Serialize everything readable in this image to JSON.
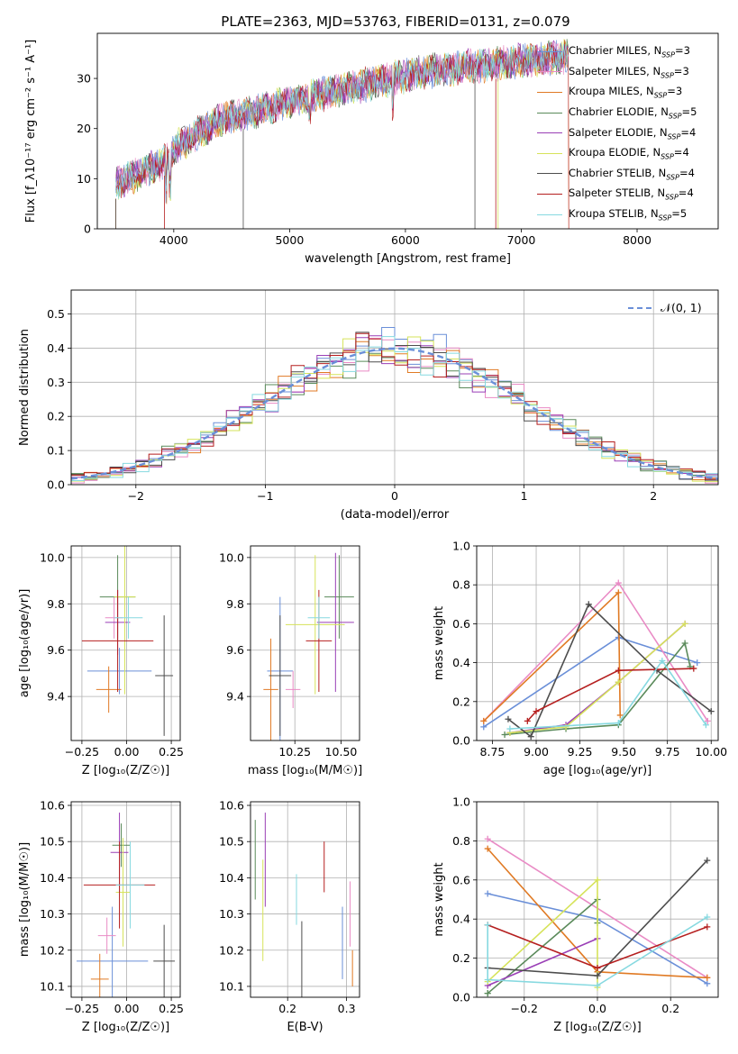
{
  "figure": {
    "title": "PLATE=2363, MJD=53763, FIBERID=0131, z=0.079"
  },
  "colors": {
    "series": [
      "#6a8fd8",
      "#e98bc5",
      "#e07a24",
      "#5a8a5a",
      "#9a3fb6",
      "#d6e35a",
      "#4d4d4d",
      "#b51f1f",
      "#86d9e0"
    ],
    "gaussian": "#6a8fd8",
    "grid": "#b0b0b0"
  },
  "legend": {
    "models": [
      {
        "name": "Chabrier MILES",
        "n": "3"
      },
      {
        "name": "Salpeter MILES",
        "n": "3"
      },
      {
        "name": "Kroupa MILES",
        "n": "3"
      },
      {
        "name": "Chabrier ELODIE",
        "n": "5"
      },
      {
        "name": "Salpeter ELODIE",
        "n": "4"
      },
      {
        "name": "Kroupa ELODIE",
        "n": "4"
      },
      {
        "name": "Chabrier STELIB",
        "n": "4"
      },
      {
        "name": "Salpeter STELIB",
        "n": "4"
      },
      {
        "name": "Kroupa STELIB",
        "n": "5"
      }
    ],
    "n_prefix": "N",
    "n_sub": "SSP",
    "gaussian_label": "𝒩(0, 1)"
  },
  "chart_data": [
    {
      "id": "spectrum",
      "type": "line",
      "xlabel": "wavelength [Angstrom, rest frame]",
      "ylabel": "Flux [f_λ10⁻¹⁷ erg cm⁻² s⁻¹ A⁻¹]",
      "xlim": [
        3340,
        8700
      ],
      "ylim": [
        0,
        39
      ],
      "xticks": [
        4000,
        5000,
        6000,
        7000,
        8000
      ],
      "yticks": [
        0,
        10,
        20,
        30
      ],
      "grid": false,
      "legend_position": "upper-right",
      "continuum": {
        "x": [
          3500,
          3700,
          3900,
          4000,
          4200,
          4400,
          4600,
          4800,
          5000,
          5200,
          5400,
          5600,
          5800,
          6000,
          6200,
          6400,
          6600,
          6800,
          7000,
          7200,
          7400
        ],
        "y": [
          9,
          11,
          13,
          16,
          19,
          21.5,
          23,
          24,
          25.5,
          26.5,
          27.5,
          28.5,
          29.5,
          30.5,
          31.5,
          32,
          32.5,
          33,
          33.5,
          34,
          34.5
        ]
      },
      "x_range": [
        3500,
        7410
      ]
    },
    {
      "id": "residuals",
      "type": "bar",
      "xlabel": "(data-model)/error",
      "ylabel": "Normed distribution",
      "xlim": [
        -2.5,
        2.5
      ],
      "ylim": [
        0,
        0.57
      ],
      "xticks": [
        -2,
        -1,
        0,
        1,
        2
      ],
      "yticks": [
        0.0,
        0.1,
        0.2,
        0.3,
        0.4,
        0.5
      ],
      "grid": true,
      "bin_width": 0.1,
      "legend_position": "upper-right"
    },
    {
      "id": "age-vs-Z",
      "type": "scatter",
      "xlabel": "Z [log₁₀(Z/Z☉)]",
      "ylabel": "age  [log₁₀(age/yr)]",
      "xlim": [
        -0.31,
        0.3
      ],
      "ylim": [
        9.21,
        10.05
      ],
      "xticks": [
        -0.25,
        0.0,
        0.25
      ],
      "yticks": [
        9.4,
        9.6,
        9.8,
        10.0
      ],
      "grid": true,
      "points": [
        {
          "series": 0,
          "x": -0.04,
          "y": 9.51,
          "xerr": 0.18,
          "yerr": 0.1
        },
        {
          "series": 1,
          "x": -0.07,
          "y": 9.74,
          "xerr": 0.05,
          "yerr": 0.09
        },
        {
          "series": 2,
          "x": -0.1,
          "y": 9.43,
          "xerr": 0.07,
          "yerr": 0.1
        },
        {
          "series": 3,
          "x": -0.05,
          "y": 9.83,
          "xerr": 0.1,
          "yerr": 0.18
        },
        {
          "series": 4,
          "x": -0.05,
          "y": 9.72,
          "xerr": 0.07,
          "yerr": 0.14
        },
        {
          "series": 5,
          "x": -0.01,
          "y": 9.83,
          "xerr": 0.06,
          "yerr": 0.42
        },
        {
          "series": 6,
          "x": 0.21,
          "y": 9.49,
          "xerr": 0.05,
          "yerr": 0.26
        },
        {
          "series": 7,
          "x": -0.05,
          "y": 9.64,
          "xerr": 0.2,
          "yerr": 0.22
        },
        {
          "series": 8,
          "x": 0.01,
          "y": 9.74,
          "xerr": 0.08,
          "yerr": 0.09
        }
      ]
    },
    {
      "id": "age-vs-mass",
      "type": "scatter",
      "xlabel": "mass [log₁₀(M/M☉)]",
      "ylabel": "",
      "xlim": [
        10.01,
        10.6
      ],
      "ylim": [
        9.21,
        10.05
      ],
      "xticks": [
        10.25,
        10.5
      ],
      "yticks": [
        9.4,
        9.6,
        9.8,
        10.0
      ],
      "grid": true,
      "points": [
        {
          "series": 0,
          "x": 10.17,
          "y": 9.51,
          "xerr": 0.07,
          "yerr": 0.32
        },
        {
          "series": 1,
          "x": 10.24,
          "y": 9.43,
          "xerr": 0.04,
          "yerr": 0.08
        },
        {
          "series": 2,
          "x": 10.12,
          "y": 9.43,
          "xerr": 0.04,
          "yerr": 0.22
        },
        {
          "series": 3,
          "x": 10.49,
          "y": 9.83,
          "xerr": 0.08,
          "yerr": 0.18
        },
        {
          "series": 4,
          "x": 10.47,
          "y": 9.72,
          "xerr": 0.1,
          "yerr": 0.3
        },
        {
          "series": 5,
          "x": 10.36,
          "y": 9.71,
          "xerr": 0.16,
          "yerr": 0.3
        },
        {
          "series": 6,
          "x": 10.17,
          "y": 9.49,
          "xerr": 0.06,
          "yerr": 0.26
        },
        {
          "series": 7,
          "x": 10.38,
          "y": 9.64,
          "xerr": 0.07,
          "yerr": 0.22
        },
        {
          "series": 8,
          "x": 10.38,
          "y": 9.74,
          "xerr": 0.06,
          "yerr": 0.09
        }
      ]
    },
    {
      "id": "weight-vs-age",
      "type": "line",
      "xlabel": "age  [log₁₀(age/yr)]",
      "ylabel": "mass weight",
      "xlim": [
        8.66,
        10.04
      ],
      "ylim": [
        0,
        1.0
      ],
      "xticks": [
        8.75,
        9.0,
        9.25,
        9.5,
        9.75,
        10.0
      ],
      "yticks": [
        0.0,
        0.2,
        0.4,
        0.6,
        0.8,
        1.0
      ],
      "grid": true,
      "series": [
        {
          "x": [
            8.7,
            9.47,
            9.92
          ],
          "y": [
            0.07,
            0.53,
            0.4
          ]
        },
        {
          "x": [
            8.7,
            9.47,
            9.98
          ],
          "y": [
            0.1,
            0.81,
            0.1
          ]
        },
        {
          "x": [
            8.7,
            9.47,
            9.48
          ],
          "y": [
            0.1,
            0.76,
            0.13
          ]
        },
        {
          "x": [
            8.82,
            9.17,
            9.47,
            9.85,
            9.88
          ],
          "y": [
            0.03,
            0.06,
            0.08,
            0.5,
            0.38
          ]
        },
        {
          "x": [
            8.85,
            9.17,
            9.47,
            9.85
          ],
          "y": [
            0.04,
            0.08,
            0.3,
            0.6
          ]
        },
        {
          "x": [
            8.85,
            9.17,
            9.47,
            9.85
          ],
          "y": [
            0.04,
            0.07,
            0.3,
            0.6
          ]
        },
        {
          "x": [
            8.84,
            8.97,
            9.3,
            9.69,
            10.0
          ],
          "y": [
            0.11,
            0.02,
            0.7,
            0.36,
            0.15
          ]
        },
        {
          "x": [
            8.95,
            9.0,
            9.47,
            9.9
          ],
          "y": [
            0.1,
            0.15,
            0.36,
            0.37
          ]
        },
        {
          "x": [
            8.85,
            9.47,
            9.72,
            9.97
          ],
          "y": [
            0.06,
            0.09,
            0.41,
            0.08
          ]
        }
      ]
    },
    {
      "id": "mass-vs-Z",
      "type": "scatter",
      "xlabel": "Z [log₁₀(Z/Z☉)]",
      "ylabel": "mass [log₁₀(M/M☉)]",
      "xlim": [
        -0.31,
        0.3
      ],
      "ylim": [
        10.07,
        10.61
      ],
      "xticks": [
        -0.25,
        0.0,
        0.25
      ],
      "yticks": [
        10.1,
        10.2,
        10.3,
        10.4,
        10.5,
        10.6
      ],
      "grid": true,
      "points": [
        {
          "series": 0,
          "x": -0.08,
          "y": 10.17,
          "xerr": 0.2,
          "yerr": 0.15
        },
        {
          "series": 1,
          "x": -0.11,
          "y": 10.24,
          "xerr": 0.05,
          "yerr": 0.05
        },
        {
          "series": 2,
          "x": -0.15,
          "y": 10.12,
          "xerr": 0.05,
          "yerr": 0.07
        },
        {
          "series": 3,
          "x": -0.03,
          "y": 10.49,
          "xerr": 0.05,
          "yerr": 0.06
        },
        {
          "series": 4,
          "x": -0.04,
          "y": 10.47,
          "xerr": 0.05,
          "yerr": 0.11
        },
        {
          "series": 5,
          "x": -0.02,
          "y": 10.36,
          "xerr": 0.04,
          "yerr": 0.15
        },
        {
          "series": 6,
          "x": 0.21,
          "y": 10.17,
          "xerr": 0.06,
          "yerr": 0.1
        },
        {
          "series": 7,
          "x": -0.04,
          "y": 10.38,
          "xerr": 0.2,
          "yerr": 0.12
        },
        {
          "series": 8,
          "x": 0.02,
          "y": 10.38,
          "xerr": 0.08,
          "yerr": 0.12
        }
      ]
    },
    {
      "id": "mass-vs-ebv",
      "type": "scatter",
      "xlabel": "E(B-V)",
      "ylabel": "",
      "xlim": [
        0.137,
        0.322
      ],
      "ylim": [
        10.07,
        10.61
      ],
      "xticks": [
        0.2,
        0.3
      ],
      "yticks": [
        10.1,
        10.2,
        10.3,
        10.4,
        10.5,
        10.6
      ],
      "grid": true,
      "points": [
        {
          "series": 0,
          "x": 0.293,
          "y": 10.22,
          "yerr": 0.1
        },
        {
          "series": 1,
          "x": 0.306,
          "y": 10.3,
          "yerr": 0.09
        },
        {
          "series": 2,
          "x": 0.31,
          "y": 10.15,
          "yerr": 0.05
        },
        {
          "series": 3,
          "x": 0.145,
          "y": 10.45,
          "yerr": 0.11
        },
        {
          "series": 4,
          "x": 0.162,
          "y": 10.45,
          "yerr": 0.13
        },
        {
          "series": 5,
          "x": 0.158,
          "y": 10.31,
          "yerr": 0.14
        },
        {
          "series": 6,
          "x": 0.224,
          "y": 10.17,
          "yerr": 0.11
        },
        {
          "series": 7,
          "x": 0.262,
          "y": 10.43,
          "yerr": 0.07
        },
        {
          "series": 8,
          "x": 0.215,
          "y": 10.34,
          "yerr": 0.07
        }
      ]
    },
    {
      "id": "weight-vs-Z",
      "type": "line",
      "xlabel": "Z [log₁₀(Z/Z☉)]",
      "ylabel": "mass weight",
      "xlim": [
        -0.33,
        0.33
      ],
      "ylim": [
        0,
        1.0
      ],
      "xticks": [
        -0.2,
        0.0,
        0.2
      ],
      "yticks": [
        0.0,
        0.2,
        0.4,
        0.6,
        0.8,
        1.0
      ],
      "grid": true,
      "series": [
        {
          "x": [
            -0.3,
            0.0,
            0.3
          ],
          "y": [
            0.53,
            0.4,
            0.07
          ]
        },
        {
          "x": [
            -0.3,
            0.3
          ],
          "y": [
            0.81,
            0.1
          ]
        },
        {
          "x": [
            -0.3,
            0.0,
            0.0,
            0.3
          ],
          "y": [
            0.76,
            0.13,
            0.13,
            0.1
          ]
        },
        {
          "x": [
            -0.3,
            -0.3,
            0.0,
            0.0
          ],
          "y": [
            0.02,
            0.02,
            0.5,
            0.38
          ]
        },
        {
          "x": [
            -0.3,
            0.0
          ],
          "y": [
            0.06,
            0.3
          ]
        },
        {
          "x": [
            -0.3,
            0.0,
            0.0
          ],
          "y": [
            0.08,
            0.6,
            0.05
          ]
        },
        {
          "x": [
            -0.3,
            0.0,
            0.3
          ],
          "y": [
            0.15,
            0.11,
            0.7
          ]
        },
        {
          "x": [
            -0.3,
            0.0,
            0.3
          ],
          "y": [
            0.37,
            0.15,
            0.36
          ]
        },
        {
          "x": [
            -0.3,
            -0.3,
            0.0,
            0.3
          ],
          "y": [
            0.37,
            0.09,
            0.06,
            0.41
          ]
        }
      ]
    }
  ]
}
